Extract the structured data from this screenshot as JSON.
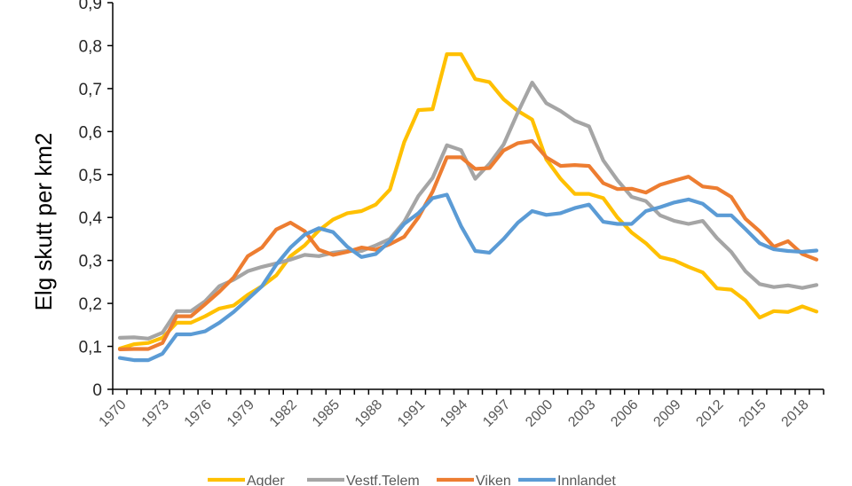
{
  "chart_data": {
    "type": "line",
    "title": "",
    "xlabel": "",
    "ylabel": "Elg skutt per km2",
    "ylim": [
      0,
      0.9
    ],
    "y_ticks": [
      "0",
      "0,1",
      "0,2",
      "0,3",
      "0,4",
      "0,5",
      "0,6",
      "0,7",
      "0,8",
      "0,9"
    ],
    "y_tick_values": [
      0,
      0.1,
      0.2,
      0.3,
      0.4,
      0.5,
      0.6,
      0.7,
      0.8,
      0.9
    ],
    "x": [
      1970,
      1971,
      1972,
      1973,
      1974,
      1975,
      1976,
      1977,
      1978,
      1979,
      1980,
      1981,
      1982,
      1983,
      1984,
      1985,
      1986,
      1987,
      1988,
      1989,
      1990,
      1991,
      1992,
      1993,
      1994,
      1995,
      1996,
      1997,
      1998,
      1999,
      2000,
      2001,
      2002,
      2003,
      2004,
      2005,
      2006,
      2007,
      2008,
      2009,
      2010,
      2011,
      2012,
      2013,
      2014,
      2015,
      2016,
      2017,
      2018,
      2019
    ],
    "x_tick_labels": [
      "1970",
      "1973",
      "1976",
      "1979",
      "1982",
      "1985",
      "1988",
      "1991",
      "1994",
      "1997",
      "2000",
      "2003",
      "2006",
      "2009",
      "2012",
      "2015",
      "2018"
    ],
    "grid": false,
    "legend_position": "bottom",
    "series": [
      {
        "name": "Agder",
        "color": "#FFC000",
        "values": [
          0.095,
          0.105,
          0.108,
          0.12,
          0.155,
          0.155,
          0.17,
          0.188,
          0.195,
          0.22,
          0.24,
          0.265,
          0.31,
          0.335,
          0.37,
          0.395,
          0.41,
          0.415,
          0.43,
          0.465,
          0.575,
          0.65,
          0.652,
          0.78,
          0.78,
          0.722,
          0.715,
          0.675,
          0.648,
          0.628,
          0.535,
          0.49,
          0.455,
          0.455,
          0.445,
          0.4,
          0.365,
          0.34,
          0.308,
          0.3,
          0.285,
          0.272,
          0.235,
          0.232,
          0.207,
          0.167,
          0.182,
          0.18,
          0.193,
          0.181
        ]
      },
      {
        "name": "Vestf.Telem",
        "color": "#A5A5A5",
        "values": [
          0.12,
          0.121,
          0.118,
          0.132,
          0.182,
          0.182,
          0.205,
          0.24,
          0.255,
          0.275,
          0.285,
          0.293,
          0.302,
          0.313,
          0.31,
          0.318,
          0.322,
          0.322,
          0.335,
          0.35,
          0.39,
          0.45,
          0.492,
          0.568,
          0.557,
          0.49,
          0.525,
          0.57,
          0.645,
          0.714,
          0.666,
          0.648,
          0.625,
          0.612,
          0.533,
          0.487,
          0.448,
          0.438,
          0.405,
          0.392,
          0.385,
          0.392,
          0.352,
          0.32,
          0.275,
          0.245,
          0.238,
          0.242,
          0.236,
          0.243
        ]
      },
      {
        "name": "Viken",
        "color": "#ED7D31",
        "values": [
          0.093,
          0.094,
          0.094,
          0.108,
          0.17,
          0.17,
          0.198,
          0.227,
          0.26,
          0.31,
          0.33,
          0.372,
          0.388,
          0.368,
          0.325,
          0.313,
          0.32,
          0.33,
          0.325,
          0.338,
          0.355,
          0.4,
          0.46,
          0.54,
          0.54,
          0.513,
          0.515,
          0.556,
          0.573,
          0.578,
          0.54,
          0.52,
          0.522,
          0.52,
          0.48,
          0.466,
          0.467,
          0.458,
          0.476,
          0.486,
          0.495,
          0.472,
          0.468,
          0.448,
          0.397,
          0.368,
          0.332,
          0.345,
          0.315,
          0.302
        ]
      },
      {
        "name": "Innlandet",
        "color": "#5B9BD5",
        "values": [
          0.073,
          0.068,
          0.068,
          0.083,
          0.128,
          0.128,
          0.135,
          0.155,
          0.18,
          0.21,
          0.24,
          0.29,
          0.33,
          0.36,
          0.375,
          0.366,
          0.332,
          0.308,
          0.315,
          0.345,
          0.385,
          0.41,
          0.445,
          0.453,
          0.38,
          0.322,
          0.318,
          0.35,
          0.388,
          0.415,
          0.406,
          0.41,
          0.422,
          0.43,
          0.39,
          0.385,
          0.385,
          0.415,
          0.424,
          0.435,
          0.442,
          0.432,
          0.405,
          0.405,
          0.373,
          0.34,
          0.326,
          0.322,
          0.32,
          0.323
        ]
      }
    ]
  }
}
